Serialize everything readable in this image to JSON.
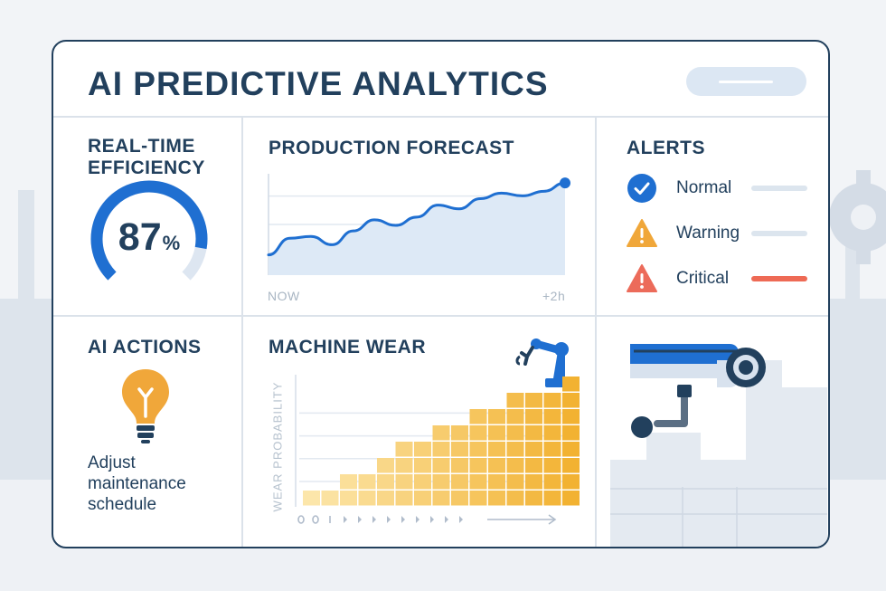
{
  "header": {
    "title": "AI PREDICTIVE ANALYTICS"
  },
  "efficiency": {
    "title_line1": "REAL-TIME",
    "title_line2": "EFFICIENCY",
    "value": "87",
    "unit": "%",
    "fraction": 0.87
  },
  "forecast": {
    "title": "PRODUCTION FORECAST",
    "x_start_label": "NOW",
    "x_end_label": "+2h"
  },
  "alerts": {
    "title": "ALERTS",
    "items": [
      {
        "label": "Normal",
        "icon": "check-circle-icon",
        "color": "#1f6fd1",
        "bar_color": "#dce5ee"
      },
      {
        "label": "Warning",
        "icon": "warning-triangle-icon",
        "color": "#f0a73a",
        "bar_color": "#dce5ee"
      },
      {
        "label": "Critical",
        "icon": "critical-triangle-icon",
        "color": "#ec6b5a",
        "bar_color": "#ee6a55"
      }
    ]
  },
  "ai_actions": {
    "title": "AI ACTIONS",
    "icon": "lightbulb-icon",
    "text_line1": "Adjust",
    "text_line2": "maintenance",
    "text_line3": "schedule"
  },
  "machine_wear": {
    "title": "MACHINE WEAR",
    "ylabel": "WEAR PROBABILITY",
    "icon": "robot-arm-icon"
  },
  "camera": {
    "icon": "security-camera-icon"
  },
  "colors": {
    "primary_blue": "#1f6fd1",
    "dark_navy": "#22405d",
    "warning_orange": "#f0a73a",
    "critical_red": "#ec6b5a",
    "wear_yellow": "#f2bd45"
  },
  "chart_data": [
    {
      "type": "area",
      "title": "PRODUCTION FORECAST",
      "x": [
        0,
        1,
        2,
        3,
        4,
        5,
        6,
        7,
        8,
        9,
        10,
        11,
        12,
        13,
        14
      ],
      "values": [
        22,
        40,
        42,
        33,
        48,
        60,
        54,
        63,
        76,
        72,
        83,
        89,
        86,
        91,
        100
      ],
      "x_start_label": "NOW",
      "x_end_label": "+2h",
      "ylim": [
        0,
        110
      ]
    },
    {
      "type": "bar",
      "title": "MACHINE WEAR",
      "ylabel": "WEAR PROBABILITY",
      "values": [
        1,
        1,
        2,
        2,
        3,
        4,
        4,
        5,
        5,
        6,
        6,
        7,
        7,
        7,
        8
      ],
      "ylim": [
        0,
        8
      ]
    }
  ]
}
